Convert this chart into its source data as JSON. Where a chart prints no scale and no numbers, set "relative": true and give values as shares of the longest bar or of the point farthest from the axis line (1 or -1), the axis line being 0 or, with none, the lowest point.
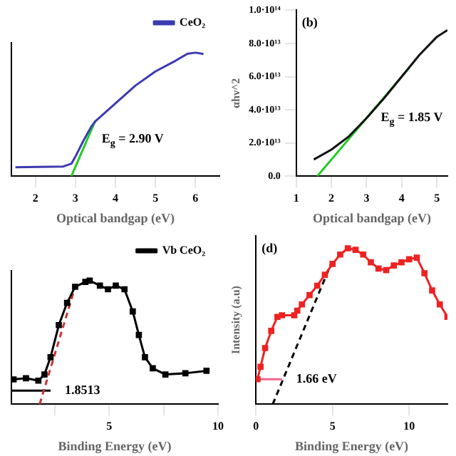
{
  "chart_data": [
    {
      "type": "line",
      "relative": true,
      "xlabel": "Optical bandgap (eV)",
      "xlim": [
        1.4,
        6.6
      ],
      "xticks": [
        2,
        3,
        4,
        5,
        6
      ],
      "legend": "top right",
      "marker": "none",
      "annotations": [
        {
          "text": "E$_{g}$ = 2.90 V",
          "x": 3.3,
          "y": 0.3
        }
      ],
      "series": [
        {
          "name": "CeO₂",
          "color": "#3b3bb0",
          "x": [
            1.5,
            2.7,
            2.9,
            3.0,
            3.2,
            3.4,
            3.5,
            3.7,
            4.0,
            4.5,
            5.0,
            5.5,
            5.8,
            6.0,
            6.2
          ],
          "values": [
            0.072,
            0.078,
            0.101,
            0.158,
            0.287,
            0.402,
            0.445,
            0.503,
            0.589,
            0.733,
            0.848,
            0.934,
            0.991,
            1,
            0.989
          ]
        },
        {
          "color": "#22cc22",
          "x": [
            2.9,
            3.5
          ],
          "values": [
            0,
            0.45
          ]
        }
      ]
    },
    {
      "type": "line",
      "xlabel": "Optical bandgap (eV)",
      "ylabel": "αhν^2",
      "xlim": [
        1,
        5.3
      ],
      "xticks": [
        1,
        2,
        3,
        4,
        5
      ],
      "ylim": [
        0,
        100000000000000.0
      ],
      "yticks": [
        {
          "value": 0,
          "label": "0.0"
        },
        {
          "value": 20000000000000.0,
          "label": "2.0·10¹³"
        },
        {
          "value": 40000000000000.0,
          "label": "4.0·10¹³"
        },
        {
          "value": 60000000000000.0,
          "label": "6.0·10¹³"
        },
        {
          "value": 80000000000000.0,
          "label": "8.0·10¹³"
        },
        {
          "value": 100000000000000.0,
          "label": "1.0·10¹⁴"
        }
      ],
      "marker": "none",
      "annotations": [
        "(b)",
        {
          "text": "E$_{g}$ = 1.85 V",
          "x": 3.0,
          "y": 35000000000000.0
        }
      ],
      "series": [
        {
          "color": "#111111",
          "x": [
            1.5,
            2.0,
            2.5,
            3.0,
            3.5,
            4.0,
            4.5,
            5.0,
            5.3
          ],
          "values": [
            10000000000000.0,
            16000000000000.0,
            24000000000000.0,
            35000000000000.0,
            47000000000000.0,
            60000000000000.0,
            73000000000000.0,
            84000000000000.0,
            88000000000000.0
          ]
        },
        {
          "color": "#22cc22",
          "x": [
            1.6,
            4.2
          ],
          "values": [
            0,
            65000000000000.0
          ]
        }
      ]
    },
    {
      "type": "line",
      "relative": true,
      "xlabel": "Binding Energy (eV)",
      "xlim": [
        0.5,
        10
      ],
      "xticks": [
        {
          "value": 2.5,
          "label": null
        },
        5,
        {
          "value": 7.5,
          "label": null
        },
        10
      ],
      "legend": "top right",
      "marker": "square",
      "annotations": [
        {
          "text": "1.8513",
          "x": 2.3,
          "y": 0.11
        }
      ],
      "series": [
        {
          "name": "Vb CeO₂",
          "color": "#000000",
          "x": [
            0.6,
            1.17,
            1.74,
            2.02,
            2.3,
            2.68,
            3.06,
            3.43,
            3.9,
            4.1,
            4.57,
            4.94,
            5.3,
            5.7,
            6.08,
            6.36,
            6.64,
            7.0,
            7.58,
            8.5,
            9.47
          ],
          "values": [
            0.2,
            0.21,
            0.19,
            0.24,
            0.38,
            0.64,
            0.82,
            0.95,
            0.99,
            1,
            0.96,
            0.93,
            0.96,
            0.93,
            0.75,
            0.56,
            0.38,
            0.29,
            0.24,
            0.25,
            0.27
          ]
        },
        {
          "color": "#cc3333",
          "line_style": "dashed",
          "marker": "none",
          "x": [
            1.8,
            3.4
          ],
          "values": [
            0,
            0.93
          ]
        },
        {
          "color": "#000000",
          "marker": "none",
          "x": [
            0.5,
            2.3
          ],
          "values": [
            0.11,
            0.11
          ]
        }
      ]
    },
    {
      "type": "line",
      "relative": true,
      "xlabel": "Binding Energy (eV)",
      "ylabel": "Intensity (a.u)",
      "xlim": [
        0,
        12.5
      ],
      "xticks": [
        0,
        5,
        10
      ],
      "marker": "square",
      "annotations": [
        "(d)",
        {
          "text": "1.66 eV",
          "x": 1.7,
          "y": 0.16
        }
      ],
      "series": [
        {
          "color": "#ee2222",
          "x": [
            0.1,
            0.3,
            0.6,
            1.0,
            1.4,
            1.7,
            2.5,
            2.7,
            3.0,
            3.5,
            4.0,
            4.5,
            5.0,
            5.5,
            6.0,
            6.5,
            7.0,
            7.5,
            8.0,
            8.5,
            9.0,
            9.5,
            10.0,
            10.5,
            11.0,
            11.5,
            12.0,
            12.5
          ],
          "values": [
            0.16,
            0.24,
            0.36,
            0.47,
            0.56,
            0.57,
            0.57,
            0.6,
            0.64,
            0.7,
            0.76,
            0.83,
            0.9,
            0.96,
            1,
            0.99,
            0.96,
            0.91,
            0.87,
            0.86,
            0.89,
            0.91,
            0.93,
            0.94,
            0.84,
            0.73,
            0.64,
            0.56
          ]
        },
        {
          "color": "#000000",
          "line_style": "dashed",
          "marker": "none",
          "x": [
            1.1,
            4.9
          ],
          "values": [
            0,
            0.9
          ]
        },
        {
          "color": "#ee6688",
          "marker": "none",
          "x": [
            0,
            1.7
          ],
          "values": [
            0.16,
            0.16
          ]
        }
      ]
    }
  ]
}
